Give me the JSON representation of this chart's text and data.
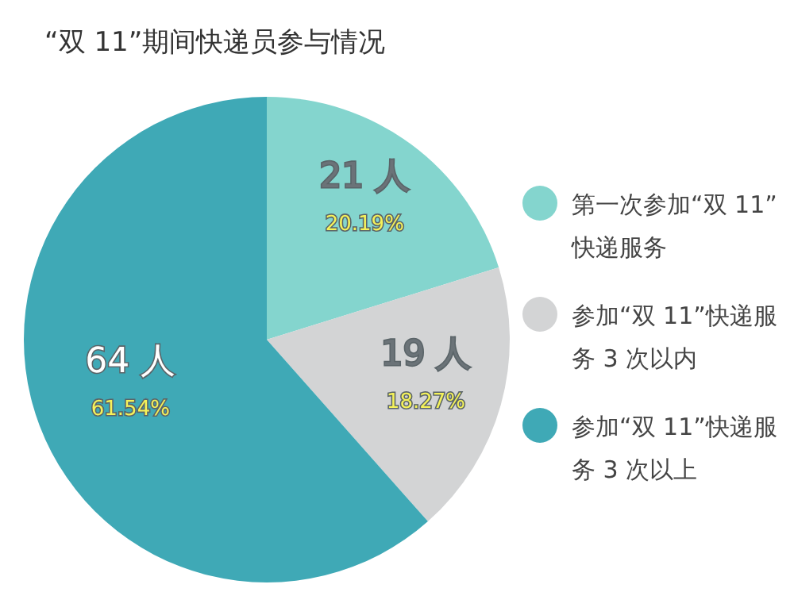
{
  "chart_data": {
    "type": "pie",
    "title": "“双 11”期间快递员参与情况",
    "categories": [
      "第一次参加“双 11”快递服务",
      "参加“双 11”快递服务 3 次以内",
      "参加“双 11”快递服务 3 次以上"
    ],
    "values": [
      21,
      19,
      64
    ],
    "value_labels": [
      "21 人\n20.19%",
      "19 人\n18.27%",
      "64 人\n61.54%"
    ],
    "colors": [
      "#84d5ce",
      "#d3d4d5",
      "#3fa9b6"
    ],
    "legend": "right"
  }
}
